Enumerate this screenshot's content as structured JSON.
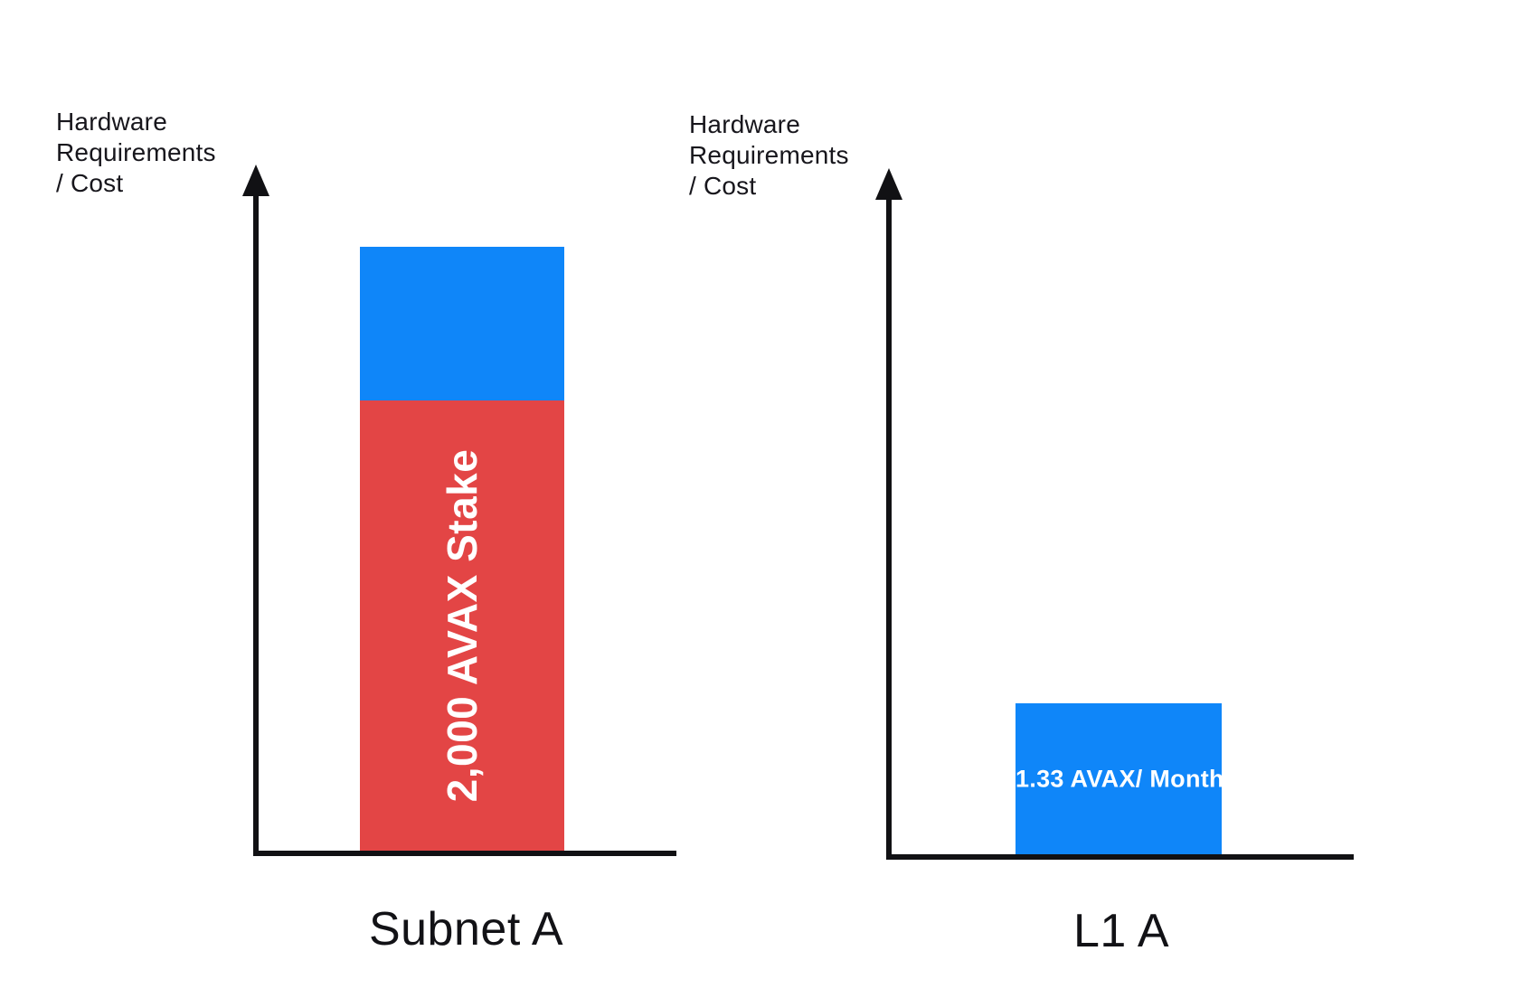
{
  "figure": {
    "background": "#ffffff"
  },
  "colors": {
    "axis": "#111114",
    "label_text": "#17161c",
    "title_text": "#121216",
    "blue": "#0f86f9",
    "red": "#e34545",
    "bar_label_text": "#ffffff"
  },
  "charts": [
    {
      "id": "subnet-a",
      "axis_label_lines": [
        "Hardware",
        "Requirements",
        "/ Cost"
      ],
      "title": "Subnet A"
    },
    {
      "id": "l1-a",
      "axis_label_lines": [
        "Hardware",
        "Requirements",
        "/ Cost"
      ],
      "title": "L1 A"
    }
  ],
  "chart_data": [
    {
      "type": "bar",
      "stacked": true,
      "title": "Subnet A",
      "xlabel": "",
      "ylabel": "Hardware Requirements / Cost",
      "categories": [
        "Subnet A"
      ],
      "series": [
        {
          "name": "unlabeled-blue-segment",
          "color": "#0f86f9",
          "values": [
            170
          ],
          "label": ""
        },
        {
          "name": "2,000 AVAX Stake",
          "color": "#e34545",
          "values": [
            498
          ],
          "label": "2,000 AVAX Stake"
        }
      ],
      "yticks": [],
      "ylim": [
        0,
        757
      ],
      "value_units": "relative height (px), axis unlabeled",
      "grid": false,
      "legend": false
    },
    {
      "type": "bar",
      "stacked": false,
      "title": "L1 A",
      "xlabel": "",
      "ylabel": "Hardware Requirements / Cost",
      "categories": [
        "L1 A"
      ],
      "series": [
        {
          "name": "1.33 AVAX/ Month",
          "color": "#0f86f9",
          "values": [
            167
          ],
          "label": "1.33 AVAX/ Month"
        }
      ],
      "yticks": [],
      "ylim": [
        0,
        757
      ],
      "value_units": "relative height (px), axis unlabeled",
      "grid": false,
      "legend": false
    }
  ]
}
